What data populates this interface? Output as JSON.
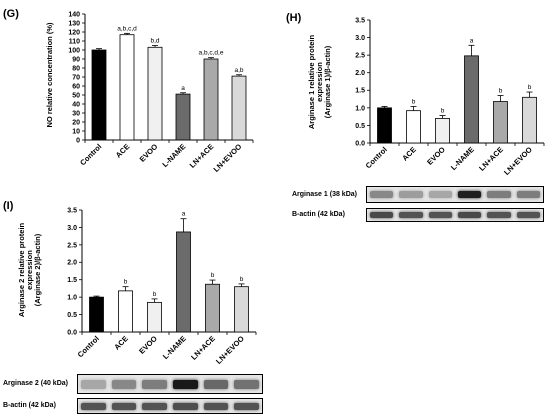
{
  "panels": {
    "G": {
      "letter": "(G)"
    },
    "H": {
      "letter": "(H)"
    },
    "I": {
      "letter": "(I)"
    }
  },
  "colors": {
    "control": "#000000",
    "ace": "#ffffff",
    "evoo": "#f0f0f0",
    "lname": "#6b6b6b",
    "ln_ace": "#a9a9a9",
    "ln_evoo": "#d9d9d9"
  },
  "chart_data": [
    {
      "id": "G",
      "type": "bar",
      "categories": [
        "Control",
        "ACE",
        "EVOO",
        "L-NAME",
        "LN+ACE",
        "LN+EVOO"
      ],
      "values": [
        100,
        117,
        103,
        51,
        90,
        71
      ],
      "errors": [
        1.5,
        1.5,
        2,
        1.5,
        1.5,
        1.5
      ],
      "annotations": [
        "",
        "a,b,c,d",
        "b,d",
        "a",
        "a,b,c,d,e",
        "a,b"
      ],
      "ylabel": "NO relative concentration (%)",
      "ylim": [
        0,
        140
      ],
      "yticks": [
        0,
        10,
        20,
        30,
        40,
        50,
        60,
        70,
        80,
        90,
        100,
        110,
        120,
        130,
        140
      ],
      "grid": false
    },
    {
      "id": "H",
      "type": "bar",
      "categories": [
        "Control",
        "ACE",
        "EVOO",
        "L-NAME",
        "LN+ACE",
        "LN+EVOO"
      ],
      "values": [
        1.0,
        0.92,
        0.7,
        2.48,
        1.18,
        1.3
      ],
      "errors": [
        0.04,
        0.12,
        0.08,
        0.3,
        0.17,
        0.15
      ],
      "annotations": [
        "",
        "b",
        "b",
        "a",
        "b",
        "b"
      ],
      "ylabel_lines": [
        "Arginase 1 relative protein",
        "expression",
        "(Arginase 1)/β-actin)"
      ],
      "ylim": [
        0,
        3.5
      ],
      "yticks": [
        "0.0",
        "0.5",
        "1.0",
        "1.5",
        "2.0",
        "2.5",
        "3.0",
        "3.5"
      ],
      "grid": false,
      "blot": [
        {
          "label": "Arginase 1 (38 kDa)"
        },
        {
          "label": "B-actin (42 kDa)"
        }
      ]
    },
    {
      "id": "I",
      "type": "bar",
      "categories": [
        "Control",
        "ACE",
        "EVOO",
        "L-NAME",
        "LN+ACE",
        "LN+EVOO"
      ],
      "values": [
        1.0,
        1.18,
        0.85,
        2.87,
        1.37,
        1.3
      ],
      "errors": [
        0.03,
        0.12,
        0.1,
        0.38,
        0.12,
        0.08
      ],
      "annotations": [
        "",
        "b",
        "b",
        "a",
        "b",
        "b"
      ],
      "ylabel_lines": [
        "Arginase 2 relative protein",
        "expression",
        "(Arginase 2)/β-actin)"
      ],
      "ylim": [
        0,
        3.5
      ],
      "yticks": [
        "0.0",
        "0.5",
        "1.0",
        "1.5",
        "2.0",
        "2.5",
        "3.0",
        "3.5"
      ],
      "grid": false,
      "blot": [
        {
          "label": "Arginase 2 (40 kDa)"
        },
        {
          "label": "B-actin (42 kDa)"
        }
      ]
    }
  ]
}
